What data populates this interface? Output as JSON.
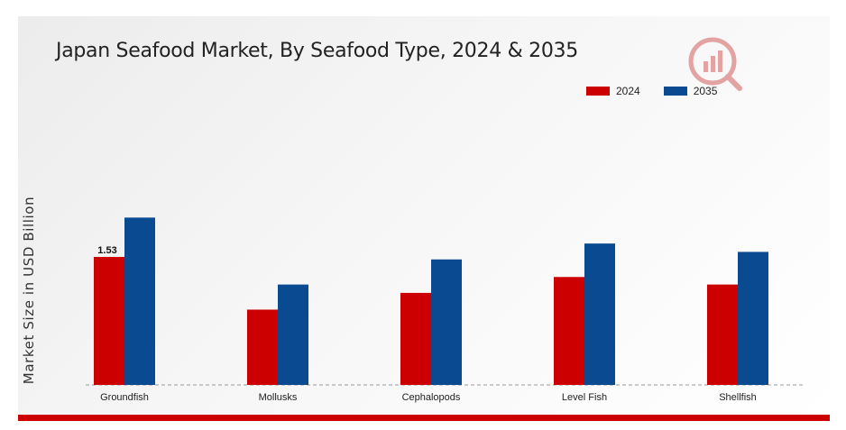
{
  "chart_data": {
    "type": "bar",
    "title": "Japan Seafood Market, By Seafood Type, 2024 & 2035",
    "xlabel": "",
    "ylabel": "Market Size in USD Billion",
    "categories": [
      "Groundfish",
      "Mollusks",
      "Cephalopods",
      "Level Fish",
      "Shellfish"
    ],
    "series": [
      {
        "name": "2024",
        "color": "#cc0000",
        "values": [
          1.53,
          0.9,
          1.1,
          1.29,
          1.2
        ]
      },
      {
        "name": "2035",
        "color": "#0a4a91",
        "values": [
          2.0,
          1.2,
          1.5,
          1.69,
          1.59
        ]
      }
    ],
    "data_labels": [
      {
        "series": "2024",
        "category": "Groundfish",
        "text": "1.53"
      }
    ],
    "ylim": [
      0,
      3.2
    ],
    "grid": false,
    "legend_position": "top-right"
  },
  "logo": {
    "icon": "market-research-logo-icon",
    "color": "#cc0000"
  }
}
